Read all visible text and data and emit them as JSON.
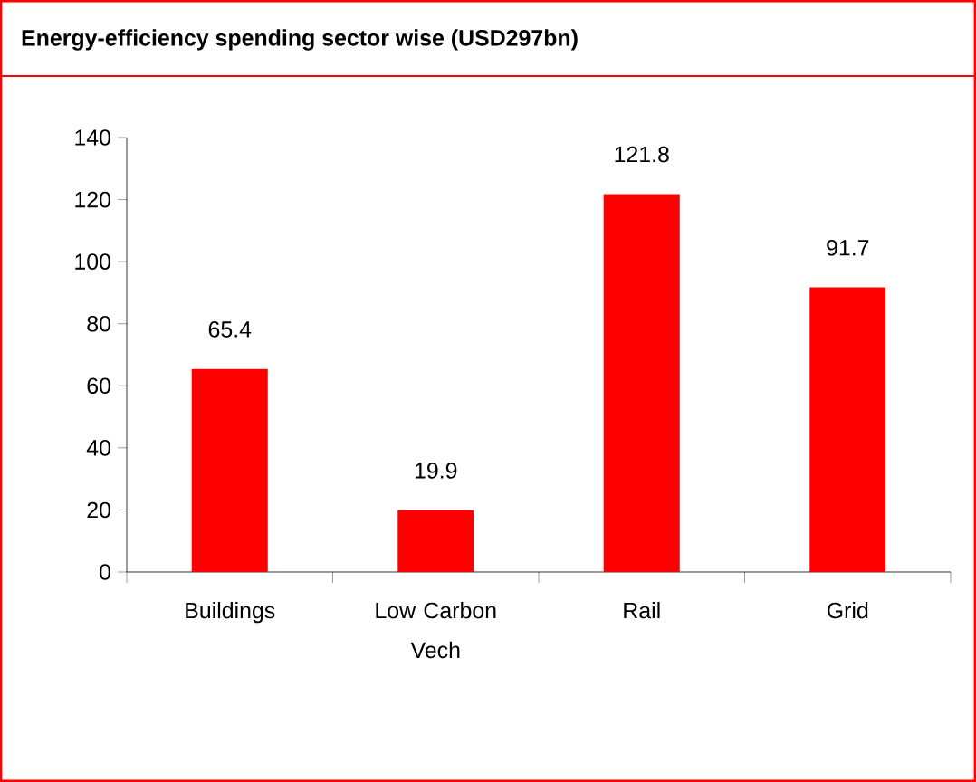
{
  "chart_data": {
    "type": "bar",
    "title": "Energy-efficiency spending sector wise (USD297bn)",
    "categories": [
      "Buildings",
      "Low Carbon Vech",
      "Rail",
      "Grid"
    ],
    "values": [
      65.4,
      19.9,
      121.8,
      91.7
    ],
    "color": "#ff0000",
    "ylim": [
      0,
      140
    ],
    "yticks": [
      0,
      20,
      40,
      60,
      80,
      100,
      120,
      140
    ],
    "grid": false,
    "data_labels": true
  }
}
